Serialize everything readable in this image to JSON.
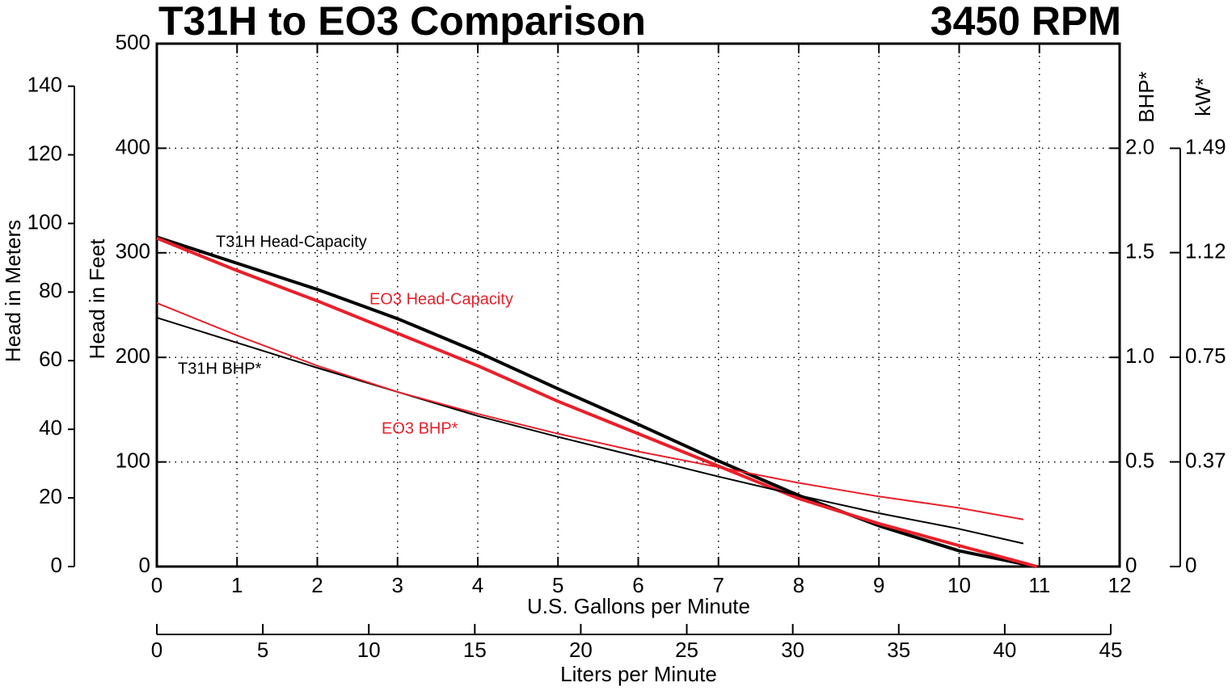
{
  "chart_data": {
    "type": "line",
    "title": "T31H to EO3 Comparison",
    "subtitle": "3450 RPM",
    "xlabel": "U.S. Gallons per Minute",
    "x2label": "Liters per Minute",
    "ylabel": "Head in Feet",
    "y_meters_label": "Head in Meters",
    "y2label": "BHP*",
    "y3label": "kW*",
    "xlim": [
      0,
      12
    ],
    "xticks": [
      0,
      1,
      2,
      3,
      4,
      5,
      6,
      7,
      8,
      9,
      10,
      11,
      12
    ],
    "x2lim": [
      0,
      45.42
    ],
    "x2ticks": [
      0,
      5,
      10,
      15,
      20,
      25,
      30,
      35,
      40,
      45
    ],
    "ylim": [
      0,
      500
    ],
    "yticks": [
      0,
      100,
      200,
      300,
      400,
      500
    ],
    "y_meters_lim": [
      0,
      152.4
    ],
    "y_meters_ticks": [
      0,
      20,
      40,
      60,
      80,
      100,
      120,
      140
    ],
    "y2lim": [
      0,
      2.5
    ],
    "y2ticks": [
      0,
      0.5,
      {
        "value": 1,
        "label": "1.0"
      },
      1.5,
      {
        "value": 2,
        "label": "2.0"
      }
    ],
    "y3lim": [
      0,
      1.864
    ],
    "y3ticks": [
      0,
      {
        "value": 0.373,
        "label": "0.37"
      },
      {
        "value": 0.746,
        "label": "0.75"
      },
      {
        "value": 1.119,
        "label": "1.12"
      },
      {
        "value": 1.491,
        "label": "1.49"
      }
    ],
    "grid": true,
    "series": [
      {
        "name": "T31H Head-Capacity",
        "color": "#000000",
        "line_width": 4,
        "x": [
          0,
          1,
          2,
          3,
          4,
          5,
          6,
          7,
          8,
          9,
          10,
          10.95
        ],
        "values": [
          315,
          290,
          265,
          237,
          205,
          170,
          136,
          101,
          68,
          39,
          15,
          0
        ]
      },
      {
        "name": "EO3 Head-Capacity",
        "color": "#e8202a",
        "line_width": 4,
        "x": [
          0,
          1,
          2,
          3,
          4,
          5,
          6,
          7,
          8,
          9,
          10,
          10.97
        ],
        "values": [
          314,
          283,
          254,
          223,
          192,
          158,
          127,
          96,
          65,
          41,
          20,
          0
        ]
      },
      {
        "name": "T31H BHP*",
        "color": "#000000",
        "line_width": 2,
        "axis": "y2",
        "x": [
          0,
          1,
          2,
          3,
          4,
          5,
          6,
          7,
          8,
          9,
          10,
          10.8
        ],
        "values": [
          1.19,
          1.07,
          0.95,
          0.835,
          0.72,
          0.62,
          0.525,
          0.43,
          0.34,
          0.255,
          0.18,
          0.11
        ]
      },
      {
        "name": "EO3 BHP*",
        "color": "#e8202a",
        "line_width": 2,
        "axis": "y2",
        "x": [
          0,
          1,
          2,
          3,
          4,
          5,
          6,
          7,
          8,
          9,
          10,
          10.8
        ],
        "values": [
          1.26,
          1.105,
          0.96,
          0.835,
          0.73,
          0.635,
          0.55,
          0.475,
          0.4,
          0.335,
          0.28,
          0.225
        ]
      }
    ]
  }
}
